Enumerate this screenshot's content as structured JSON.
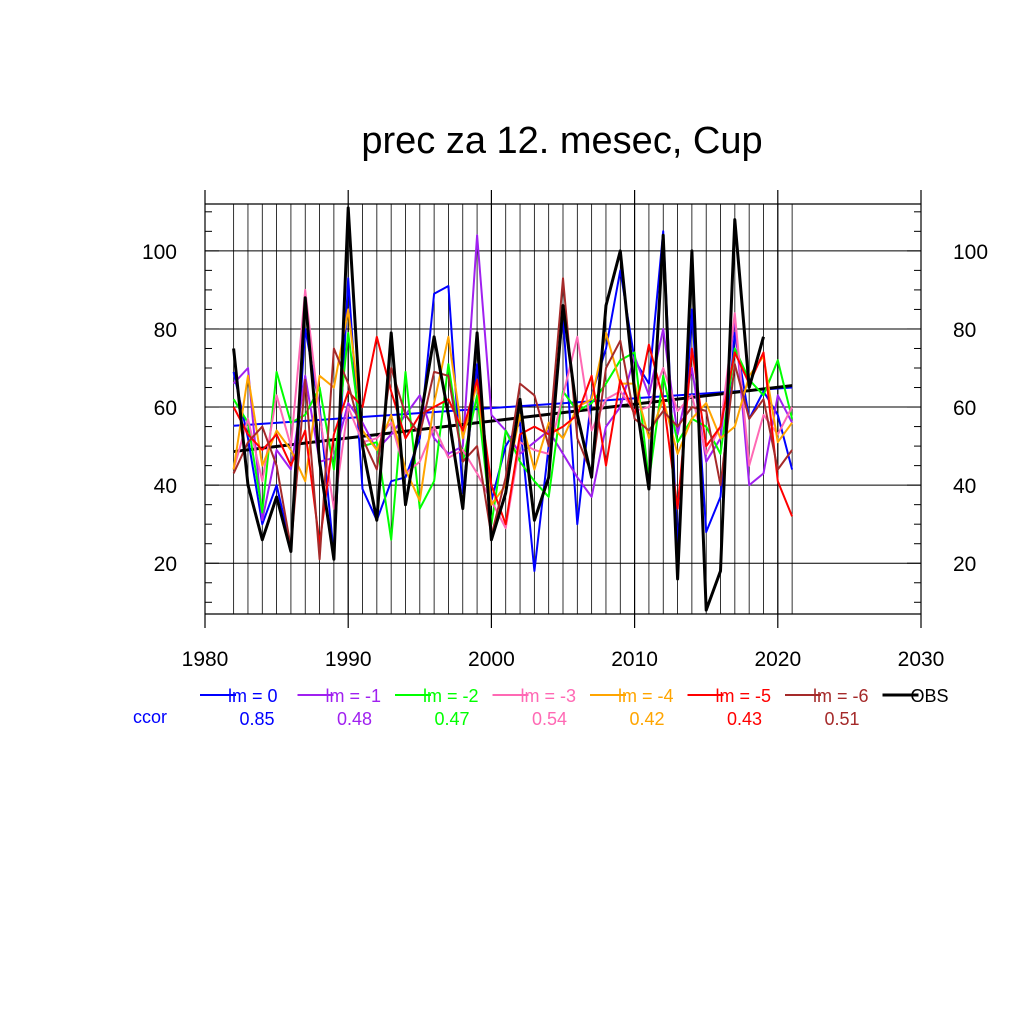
{
  "chart_data": {
    "type": "line",
    "title": "prec za 12. mesec, Cup",
    "xlabel": "",
    "ylabel": "",
    "xlim": [
      1980,
      2030
    ],
    "ylim": [
      7,
      112
    ],
    "x_ticks": [
      1980,
      1990,
      2000,
      2010,
      2020,
      2030
    ],
    "y_ticks": [
      20,
      40,
      60,
      80,
      100
    ],
    "grid": true,
    "years": [
      1982,
      1983,
      1984,
      1985,
      1986,
      1987,
      1988,
      1989,
      1990,
      1991,
      1992,
      1993,
      1994,
      1995,
      1996,
      1997,
      1998,
      1999,
      2000,
      2001,
      2002,
      2003,
      2004,
      2005,
      2006,
      2007,
      2008,
      2009,
      2010,
      2011,
      2012,
      2013,
      2014,
      2015,
      2016,
      2017,
      2018,
      2019,
      2020,
      2021
    ],
    "series": [
      {
        "name": "lm = 0",
        "color": "#0000ff",
        "width": 2,
        "values": [
          69,
          52,
          30,
          40,
          24,
          80,
          60,
          22,
          93,
          39,
          31,
          41,
          42,
          52,
          89,
          91,
          38,
          71,
          36,
          50,
          56,
          18,
          50,
          83,
          30,
          63,
          75,
          95,
          72,
          66,
          105,
          24,
          85,
          28,
          37,
          79,
          57,
          64,
          58,
          44
        ],
        "trend": [
          55.2,
          65.0
        ]
      },
      {
        "name": "lm = -1",
        "color": "#a020f0",
        "width": 2,
        "values": [
          66,
          70,
          31,
          49,
          44,
          68,
          46,
          47,
          61,
          56,
          49,
          53,
          58,
          63,
          52,
          48,
          50,
          104,
          58,
          54,
          48,
          51,
          54,
          48,
          42,
          37,
          55,
          60,
          73,
          63,
          80,
          53,
          70,
          46,
          52,
          83,
          40,
          43,
          63,
          56
        ]
      },
      {
        "name": "lm = -2",
        "color": "#00ff00",
        "width": 2,
        "values": [
          62,
          56,
          33,
          69,
          56,
          58,
          65,
          44,
          79,
          50,
          51,
          26,
          69,
          34,
          41,
          71,
          46,
          63,
          30,
          54,
          46,
          41,
          37,
          64,
          59,
          61,
          66,
          72,
          74,
          41,
          68,
          51,
          57,
          55,
          48,
          75,
          67,
          63,
          72,
          57
        ]
      },
      {
        "name": "lm = -3",
        "color": "#ff69b4",
        "width": 2,
        "values": [
          44,
          57,
          41,
          63,
          50,
          90,
          58,
          34,
          60,
          51,
          52,
          56,
          43,
          46,
          55,
          47,
          49,
          43,
          36,
          29,
          51,
          49,
          48,
          63,
          78,
          54,
          62,
          64,
          59,
          60,
          70,
          59,
          63,
          48,
          55,
          84,
          45,
          58,
          53,
          60
        ]
      },
      {
        "name": "lm = -4",
        "color": "#ffa500",
        "width": 2,
        "values": [
          44,
          68,
          45,
          54,
          49,
          41,
          68,
          65,
          85,
          54,
          49,
          58,
          44,
          36,
          61,
          78,
          52,
          66,
          35,
          40,
          58,
          44,
          56,
          52,
          60,
          62,
          79,
          66,
          66,
          52,
          62,
          48,
          57,
          61,
          52,
          55,
          68,
          73,
          51,
          56
        ]
      },
      {
        "name": "lm = -5",
        "color": "#ff0000",
        "width": 2,
        "values": [
          60,
          53,
          49,
          53,
          45,
          54,
          25,
          53,
          64,
          60,
          78,
          64,
          52,
          58,
          60,
          62,
          54,
          67,
          40,
          30,
          53,
          55,
          53,
          55,
          58,
          68,
          45,
          67,
          58,
          76,
          62,
          34,
          75,
          50,
          55,
          74,
          66,
          74,
          41,
          32
        ]
      },
      {
        "name": "lm = -6",
        "color": "#a52a2a",
        "width": 2,
        "values": [
          43,
          51,
          55,
          45,
          24,
          67,
          21,
          75,
          66,
          52,
          44,
          70,
          58,
          53,
          69,
          68,
          46,
          50,
          27,
          42,
          66,
          63,
          50,
          93,
          52,
          43,
          70,
          77,
          57,
          54,
          59,
          55,
          60,
          59,
          40,
          71,
          57,
          62,
          44,
          49
        ]
      },
      {
        "name": "OBS",
        "color": "#000000",
        "width": 3,
        "values": [
          75,
          40,
          26,
          37,
          23,
          88,
          46,
          21,
          111,
          50,
          31,
          79,
          35,
          56,
          78,
          58,
          34,
          79,
          26,
          38,
          62,
          31,
          42,
          86,
          58,
          42,
          86,
          100,
          64,
          39,
          104,
          16,
          100,
          8,
          18,
          108,
          65,
          78,
          null,
          null
        ],
        "trend": [
          48.6,
          65.5
        ]
      }
    ],
    "legend_position": "bottom",
    "ccor_label": "ccor",
    "ccor_values": [
      "0.85",
      "0.48",
      "0.47",
      "0.54",
      "0.42",
      "0.43",
      "0.51"
    ]
  }
}
